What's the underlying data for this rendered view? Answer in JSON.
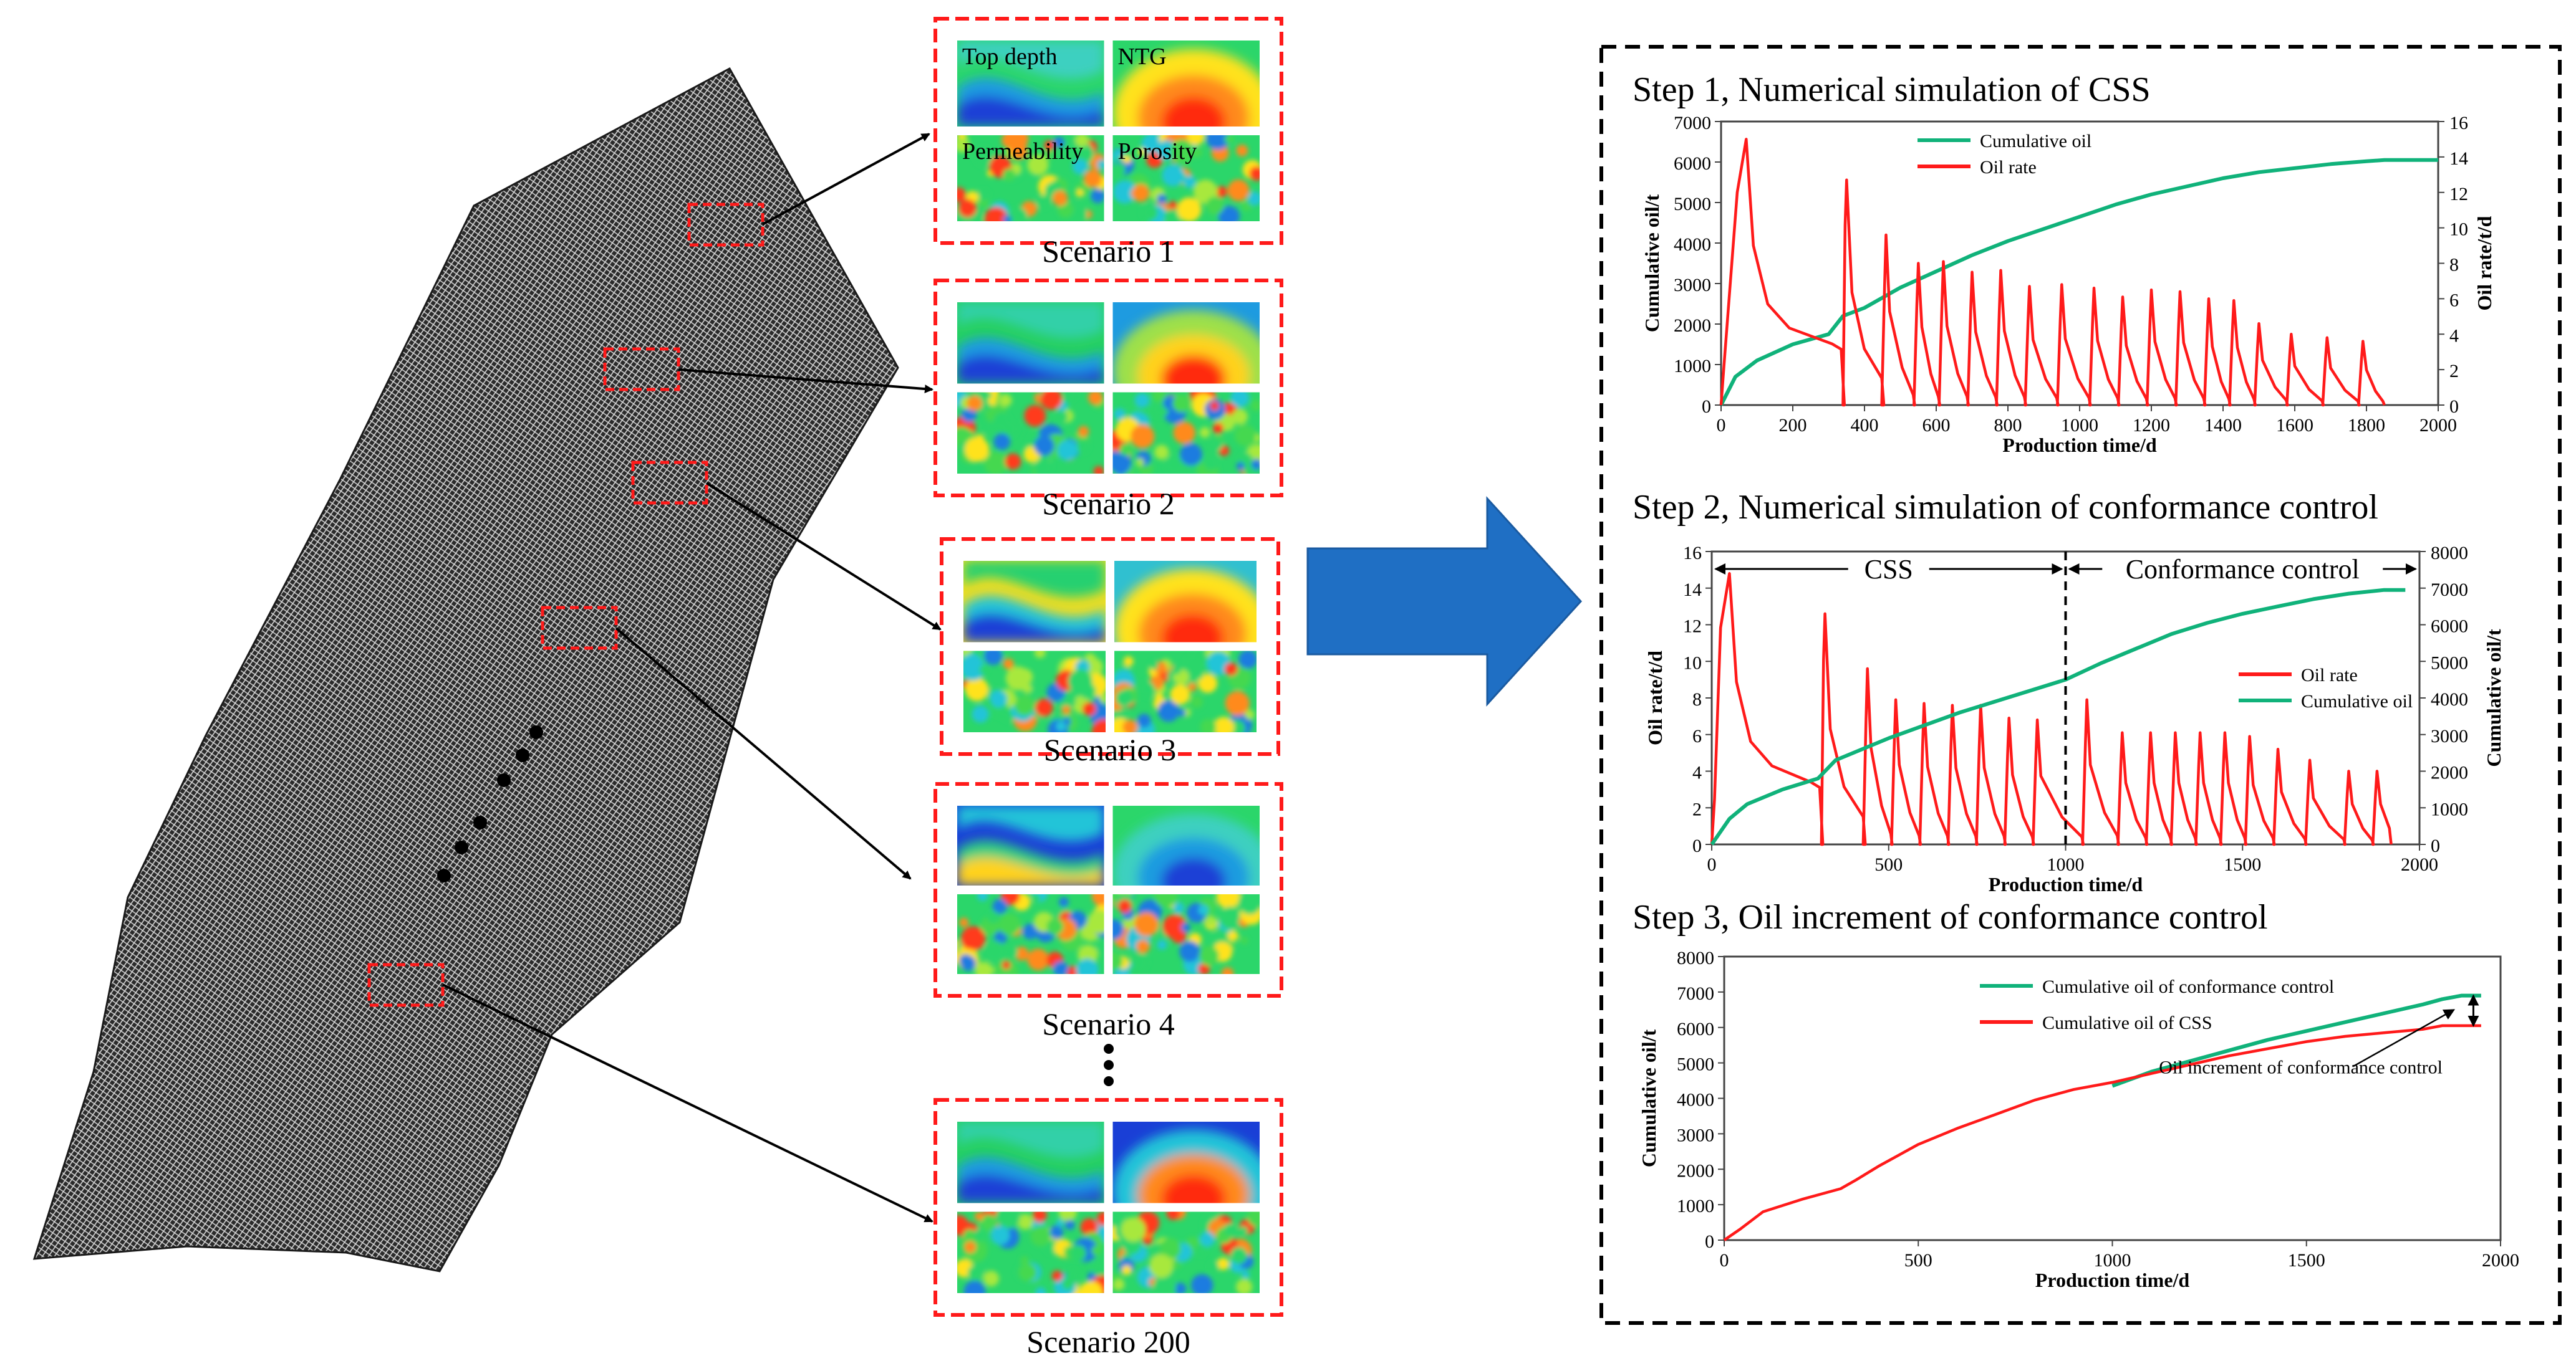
{
  "scenarios": [
    {
      "label": "Scenario 1",
      "tiles": [
        "Top depth",
        "NTG",
        "Permeability",
        "Porosity"
      ]
    },
    {
      "label": "Scenario 2"
    },
    {
      "label": "Scenario 3"
    },
    {
      "label": "Scenario 4"
    },
    {
      "label": "Scenario 200"
    }
  ],
  "colors": {
    "red": "#ff1a1a",
    "green": "#10b27a",
    "arrow": "#1f6fc4",
    "grid": "#3c3c3c"
  },
  "chart_data": [
    {
      "type": "line",
      "title": "Step 1, Numerical simulation of CSS",
      "xlabel": "Production time/d",
      "ylabel": "Cumulative oil/t",
      "y2label": "Oil rate/t/d",
      "xlim": [
        0,
        2000
      ],
      "xticks": [
        "0",
        "200",
        "400",
        "600",
        "800",
        "1000",
        "1200",
        "1400",
        "1600",
        "1800",
        "2000"
      ],
      "ylim": [
        0,
        7000
      ],
      "yticks": [
        "0",
        "1000",
        "2000",
        "3000",
        "4000",
        "5000",
        "6000",
        "7000"
      ],
      "y2lim": [
        0,
        16
      ],
      "y2ticks": [
        "0",
        "2",
        "4",
        "6",
        "8",
        "10",
        "12",
        "14",
        "16"
      ],
      "legend": [
        "Cumulative oil",
        "Oil rate"
      ],
      "series": [
        {
          "name": "Cumulative oil",
          "axis": "left",
          "x": [
            0,
            40,
            100,
            200,
            300,
            340,
            400,
            500,
            600,
            700,
            800,
            900,
            1000,
            1100,
            1200,
            1300,
            1400,
            1500,
            1600,
            1700,
            1800,
            1850,
            1900,
            2000
          ],
          "values": [
            0,
            700,
            1100,
            1500,
            1750,
            2200,
            2400,
            2900,
            3300,
            3700,
            4050,
            4350,
            4650,
            4950,
            5200,
            5400,
            5600,
            5750,
            5850,
            5950,
            6020,
            6050,
            6050,
            6050
          ]
        },
        {
          "name": "Oil rate",
          "axis": "right",
          "peaks": [
            [
              0,
              4.0
            ],
            [
              70,
              15.0
            ],
            [
              350,
              12.7
            ],
            [
              460,
              9.6
            ],
            [
              550,
              8.0
            ],
            [
              620,
              8.1
            ],
            [
              700,
              7.5
            ],
            [
              780,
              7.6
            ],
            [
              860,
              6.7
            ],
            [
              950,
              6.8
            ],
            [
              1040,
              6.6
            ],
            [
              1120,
              6.1
            ],
            [
              1200,
              6.5
            ],
            [
              1280,
              6.4
            ],
            [
              1360,
              6.0
            ],
            [
              1430,
              5.9
            ],
            [
              1500,
              4.6
            ],
            [
              1590,
              4.0
            ],
            [
              1690,
              3.8
            ],
            [
              1790,
              3.6
            ]
          ]
        }
      ]
    },
    {
      "type": "line",
      "title": "Step 2, Numerical simulation of conformance control",
      "xlabel": "Production time/d",
      "ylabel": "Oil rate/t/d",
      "y2label": "Cumulative oil/t",
      "xlim": [
        0,
        2000
      ],
      "xticks": [
        "0",
        "500",
        "1000",
        "1500",
        "2000"
      ],
      "ylim": [
        0,
        16
      ],
      "yticks": [
        "0",
        "2",
        "4",
        "6",
        "8",
        "10",
        "12",
        "14",
        "16"
      ],
      "y2lim": [
        0,
        8000
      ],
      "y2ticks": [
        "0",
        "1000",
        "2000",
        "3000",
        "4000",
        "5000",
        "6000",
        "7000",
        "8000"
      ],
      "legend": [
        "Oil rate",
        "Cumulative oil"
      ],
      "annotations": [
        "CSS",
        "Conformance control"
      ],
      "divider_x": 1000,
      "series": [
        {
          "name": "Oil rate",
          "axis": "left",
          "peaks": [
            [
              0,
              4.5
            ],
            [
              50,
              14.8
            ],
            [
              320,
              12.6
            ],
            [
              440,
              9.6
            ],
            [
              520,
              7.9
            ],
            [
              600,
              7.7
            ],
            [
              680,
              7.6
            ],
            [
              760,
              7.6
            ],
            [
              840,
              6.9
            ],
            [
              920,
              6.8
            ],
            [
              1060,
              7.9
            ],
            [
              1160,
              6.1
            ],
            [
              1240,
              6.1
            ],
            [
              1310,
              6.1
            ],
            [
              1380,
              6.1
            ],
            [
              1450,
              6.1
            ],
            [
              1520,
              5.9
            ],
            [
              1600,
              5.2
            ],
            [
              1690,
              4.6
            ],
            [
              1800,
              4.0
            ],
            [
              1880,
              4.0
            ]
          ]
        },
        {
          "name": "Cumulative oil",
          "axis": "right",
          "x": [
            0,
            50,
            100,
            200,
            300,
            350,
            400,
            500,
            600,
            700,
            800,
            900,
            1000,
            1100,
            1200,
            1300,
            1400,
            1500,
            1600,
            1700,
            1800,
            1900,
            1960
          ],
          "values": [
            0,
            700,
            1100,
            1500,
            1800,
            2300,
            2500,
            2900,
            3250,
            3600,
            3900,
            4200,
            4500,
            4950,
            5350,
            5750,
            6050,
            6300,
            6500,
            6700,
            6850,
            6950,
            6950
          ]
        }
      ]
    },
    {
      "type": "line",
      "title": "Step 3, Oil increment of conformance control",
      "xlabel": "Production time/d",
      "ylabel": "Cumulative oil/t",
      "xlim": [
        0,
        2000
      ],
      "xticks": [
        "0",
        "500",
        "1000",
        "1500",
        "2000"
      ],
      "ylim": [
        0,
        8000
      ],
      "yticks": [
        "0",
        "1000",
        "2000",
        "3000",
        "4000",
        "5000",
        "6000",
        "7000",
        "8000"
      ],
      "legend": [
        "Cumulative oil of conformance control",
        "Cumulative oil of CSS"
      ],
      "annotation": "Oil increment of conformance control",
      "series": [
        {
          "name": "Cumulative oil of conformance control",
          "x": [
            1000,
            1100,
            1200,
            1300,
            1400,
            1500,
            1600,
            1700,
            1800,
            1850,
            1900,
            1950
          ],
          "values": [
            4350,
            4750,
            5050,
            5350,
            5650,
            5900,
            6150,
            6400,
            6650,
            6800,
            6900,
            6900
          ]
        },
        {
          "name": "Cumulative oil of CSS",
          "x": [
            0,
            40,
            100,
            200,
            300,
            340,
            400,
            500,
            600,
            700,
            800,
            900,
            1000,
            1100,
            1200,
            1300,
            1400,
            1500,
            1600,
            1700,
            1800,
            1850,
            1900,
            1950
          ],
          "values": [
            0,
            300,
            800,
            1150,
            1450,
            1700,
            2100,
            2700,
            3150,
            3550,
            3950,
            4250,
            4450,
            4700,
            4950,
            5200,
            5400,
            5600,
            5750,
            5850,
            5950,
            6050,
            6050,
            6050
          ]
        }
      ]
    }
  ]
}
